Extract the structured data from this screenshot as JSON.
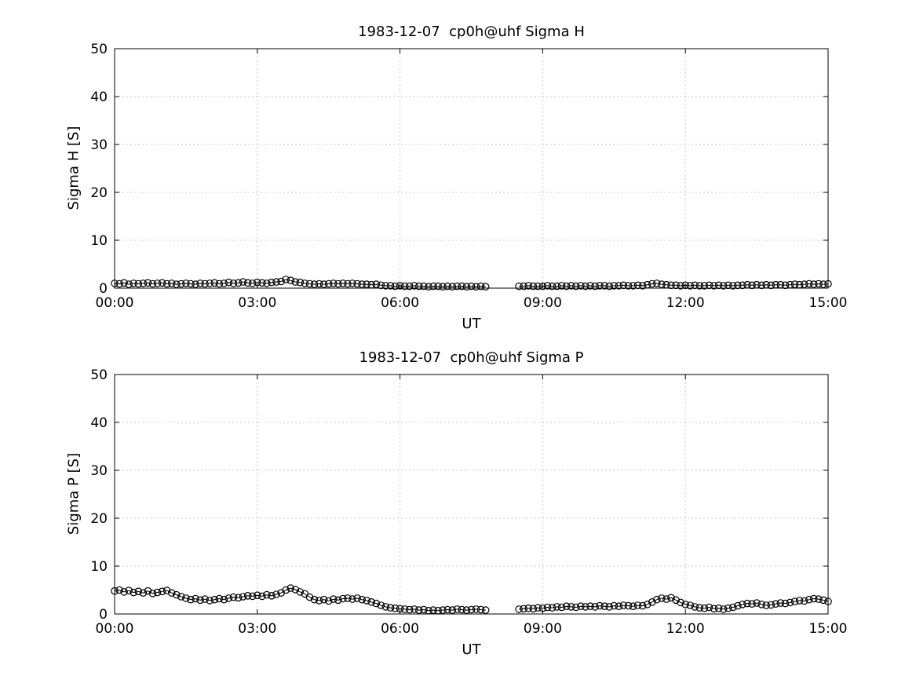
{
  "chart_data": [
    {
      "type": "scatter",
      "title": "1983-12-07  cp0h@uhf Sigma H",
      "xlabel": "UT",
      "ylabel": "Sigma H [S]",
      "xlim": [
        0,
        15
      ],
      "ylim": [
        0,
        50
      ],
      "xticks": [
        0,
        3,
        6,
        9,
        12,
        15
      ],
      "xtick_labels": [
        "00:00",
        "03:00",
        "06:00",
        "09:00",
        "12:00",
        "15:00"
      ],
      "yticks": [
        0,
        10,
        20,
        30,
        40,
        50
      ],
      "grid": true,
      "marker": "open-circle",
      "color": "#000000",
      "grid_color": "#c8c8c8",
      "data_gap_hours": [
        7.9,
        8.4
      ],
      "x": [
        0,
        0.1,
        0.2,
        0.3,
        0.4,
        0.5,
        0.6,
        0.7,
        0.8,
        0.9,
        1,
        1.1,
        1.2,
        1.3,
        1.4,
        1.5,
        1.6,
        1.7,
        1.8,
        1.9,
        2,
        2.1,
        2.2,
        2.3,
        2.4,
        2.5,
        2.6,
        2.7,
        2.8,
        2.9,
        3,
        3.1,
        3.2,
        3.3,
        3.4,
        3.5,
        3.6,
        3.7,
        3.8,
        3.9,
        4,
        4.1,
        4.2,
        4.3,
        4.4,
        4.5,
        4.6,
        4.7,
        4.8,
        4.9,
        5,
        5.1,
        5.2,
        5.3,
        5.4,
        5.5,
        5.6,
        5.7,
        5.8,
        5.9,
        6,
        6.1,
        6.2,
        6.3,
        6.4,
        6.5,
        6.6,
        6.7,
        6.8,
        6.9,
        7,
        7.1,
        7.2,
        7.3,
        7.4,
        7.5,
        7.6,
        7.7,
        7.8,
        7.9,
        8,
        8.1,
        8.2,
        8.3,
        8.4,
        8.5,
        8.6,
        8.7,
        8.8,
        8.9,
        9,
        9.1,
        9.2,
        9.3,
        9.4,
        9.5,
        9.6,
        9.7,
        9.8,
        9.9,
        10,
        10.1,
        10.2,
        10.3,
        10.4,
        10.5,
        10.6,
        10.7,
        10.8,
        10.9,
        11,
        11.1,
        11.2,
        11.3,
        11.4,
        11.5,
        11.6,
        11.7,
        11.8,
        11.9,
        12,
        12.1,
        12.2,
        12.3,
        12.4,
        12.5,
        12.6,
        12.7,
        12.8,
        12.9,
        13,
        13.1,
        13.2,
        13.3,
        13.4,
        13.5,
        13.6,
        13.7,
        13.8,
        13.9,
        14,
        14.1,
        14.2,
        14.3,
        14.4,
        14.5,
        14.6,
        14.7,
        14.8,
        14.9,
        15
      ],
      "y": [
        1,
        0.9,
        1.1,
        0.8,
        1,
        0.9,
        1,
        1.1,
        0.9,
        1,
        1.1,
        0.9,
        1,
        0.8,
        0.9,
        1,
        0.9,
        0.8,
        1,
        0.9,
        1,
        1.1,
        0.9,
        1,
        1.2,
        1,
        1.1,
        1.3,
        1.1,
        1,
        1.2,
        1.1,
        1,
        1.2,
        1.3,
        1.4,
        1.8,
        1.6,
        1.3,
        1.2,
        1,
        0.9,
        0.8,
        0.9,
        0.8,
        0.9,
        1,
        0.9,
        1,
        0.9,
        1,
        0.9,
        0.8,
        0.8,
        0.7,
        0.8,
        0.6,
        0.5,
        0.5,
        0.4,
        0.5,
        0.4,
        0.4,
        0.5,
        0.4,
        0.4,
        0.3,
        0.4,
        0.4,
        0.3,
        0.4,
        0.3,
        0.4,
        0.4,
        0.3,
        0.4,
        0.3,
        0.4,
        0.3,
        null,
        null,
        null,
        null,
        null,
        null,
        0.4,
        0.4,
        0.5,
        0.4,
        0.4,
        0.4,
        0.5,
        0.4,
        0.4,
        0.5,
        0.4,
        0.5,
        0.4,
        0.5,
        0.4,
        0.5,
        0.4,
        0.5,
        0.5,
        0.4,
        0.5,
        0.5,
        0.6,
        0.5,
        0.5,
        0.6,
        0.5,
        0.7,
        0.9,
        1,
        0.8,
        0.7,
        0.6,
        0.6,
        0.5,
        0.6,
        0.5,
        0.6,
        0.5,
        0.5,
        0.6,
        0.5,
        0.6,
        0.5,
        0.6,
        0.5,
        0.6,
        0.6,
        0.7,
        0.6,
        0.7,
        0.6,
        0.7,
        0.6,
        0.7,
        0.7,
        0.6,
        0.7,
        0.8,
        0.7,
        0.8,
        0.9,
        0.8,
        0.9,
        0.8,
        0.9
      ]
    },
    {
      "type": "scatter",
      "title": "1983-12-07  cp0h@uhf Sigma P",
      "xlabel": "UT",
      "ylabel": "Sigma P [S]",
      "xlim": [
        0,
        15
      ],
      "ylim": [
        0,
        50
      ],
      "xticks": [
        0,
        3,
        6,
        9,
        12,
        15
      ],
      "xtick_labels": [
        "00:00",
        "03:00",
        "06:00",
        "09:00",
        "12:00",
        "15:00"
      ],
      "yticks": [
        0,
        10,
        20,
        30,
        40,
        50
      ],
      "grid": true,
      "marker": "open-circle",
      "color": "#000000",
      "grid_color": "#c8c8c8",
      "data_gap_hours": [
        7.9,
        8.4
      ],
      "x": [
        0,
        0.1,
        0.2,
        0.3,
        0.4,
        0.5,
        0.6,
        0.7,
        0.8,
        0.9,
        1,
        1.1,
        1.2,
        1.3,
        1.4,
        1.5,
        1.6,
        1.7,
        1.8,
        1.9,
        2,
        2.1,
        2.2,
        2.3,
        2.4,
        2.5,
        2.6,
        2.7,
        2.8,
        2.9,
        3,
        3.1,
        3.2,
        3.3,
        3.4,
        3.5,
        3.6,
        3.7,
        3.8,
        3.9,
        4,
        4.1,
        4.2,
        4.3,
        4.4,
        4.5,
        4.6,
        4.7,
        4.8,
        4.9,
        5,
        5.1,
        5.2,
        5.3,
        5.4,
        5.5,
        5.6,
        5.7,
        5.8,
        5.9,
        6,
        6.1,
        6.2,
        6.3,
        6.4,
        6.5,
        6.6,
        6.7,
        6.8,
        6.9,
        7,
        7.1,
        7.2,
        7.3,
        7.4,
        7.5,
        7.6,
        7.7,
        7.8,
        7.9,
        8,
        8.1,
        8.2,
        8.3,
        8.4,
        8.5,
        8.6,
        8.7,
        8.8,
        8.9,
        9,
        9.1,
        9.2,
        9.3,
        9.4,
        9.5,
        9.6,
        9.7,
        9.8,
        9.9,
        10,
        10.1,
        10.2,
        10.3,
        10.4,
        10.5,
        10.6,
        10.7,
        10.8,
        10.9,
        11,
        11.1,
        11.2,
        11.3,
        11.4,
        11.5,
        11.6,
        11.7,
        11.8,
        11.9,
        12,
        12.1,
        12.2,
        12.3,
        12.4,
        12.5,
        12.6,
        12.7,
        12.8,
        12.9,
        13,
        13.1,
        13.2,
        13.3,
        13.4,
        13.5,
        13.6,
        13.7,
        13.8,
        13.9,
        14,
        14.1,
        14.2,
        14.3,
        14.4,
        14.5,
        14.6,
        14.7,
        14.8,
        14.9,
        15
      ],
      "y": [
        4.8,
        5,
        4.6,
        4.9,
        4.5,
        4.7,
        4.4,
        4.8,
        4.3,
        4.5,
        4.7,
        4.9,
        4.4,
        4,
        3.6,
        3.3,
        3,
        3.2,
        2.9,
        3.1,
        2.8,
        3,
        3.2,
        3,
        3.3,
        3.5,
        3.4,
        3.6,
        3.8,
        3.7,
        3.9,
        3.7,
        4,
        3.8,
        4.1,
        4.4,
        5,
        5.4,
        5.1,
        4.6,
        4.2,
        3.5,
        3,
        2.8,
        3,
        2.7,
        3.1,
        2.9,
        3.2,
        3.3,
        3.1,
        3.3,
        3,
        2.8,
        2.5,
        2.2,
        1.8,
        1.5,
        1.3,
        1.2,
        1.1,
        1,
        0.9,
        1,
        0.8,
        0.9,
        0.7,
        0.8,
        0.7,
        0.8,
        0.9,
        0.8,
        1,
        0.9,
        0.8,
        0.9,
        1,
        0.9,
        0.8,
        null,
        null,
        null,
        null,
        null,
        null,
        1,
        1.1,
        1.2,
        1.1,
        1.3,
        1.2,
        1.4,
        1.3,
        1.5,
        1.4,
        1.6,
        1.5,
        1.4,
        1.6,
        1.5,
        1.6,
        1.5,
        1.7,
        1.6,
        1.5,
        1.7,
        1.6,
        1.8,
        1.7,
        1.6,
        1.8,
        1.7,
        2,
        2.5,
        3,
        3.3,
        3.1,
        3.4,
        2.9,
        2.4,
        2,
        1.8,
        1.5,
        1.3,
        1.2,
        1.4,
        1.1,
        1.2,
        1,
        1.2,
        1.4,
        1.7,
        2,
        2.2,
        2.1,
        2.3,
        2,
        1.8,
        1.9,
        2.1,
        2.3,
        2.2,
        2.4,
        2.6,
        2.8,
        2.7,
        3,
        3.2,
        3.1,
        2.9,
        2.6
      ]
    }
  ]
}
